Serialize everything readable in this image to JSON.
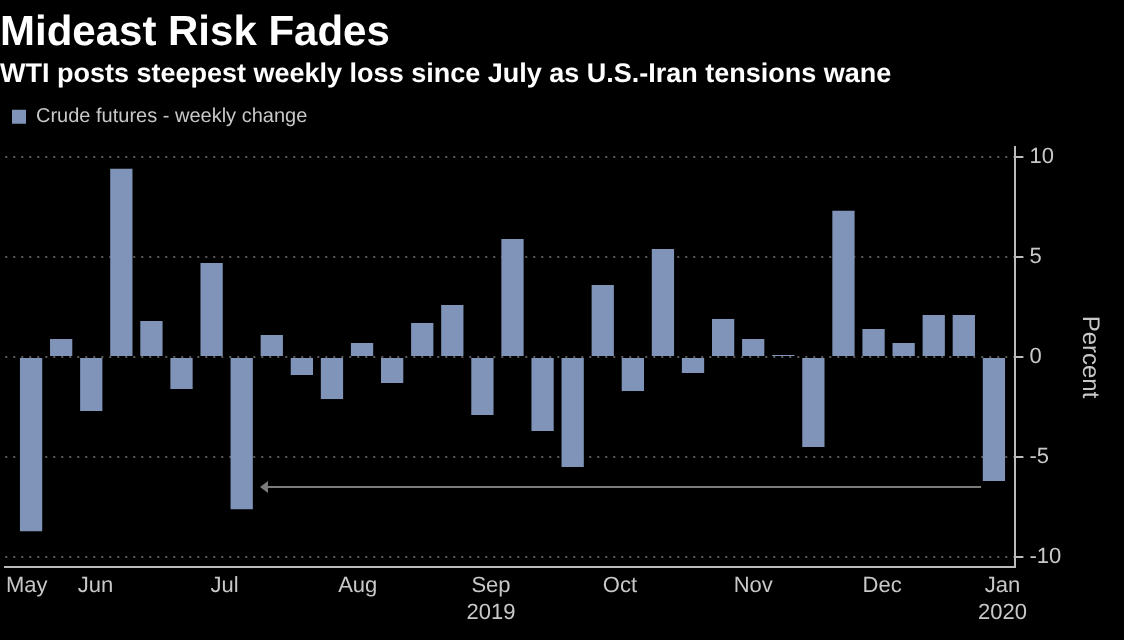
{
  "chart_data": {
    "type": "bar",
    "title": "Mideast Risk Fades",
    "subtitle": "WTI posts steepest weekly loss since July as U.S.-Iran tensions wane",
    "ylabel": "Percent",
    "x": [
      "2019-05-31",
      "2019-06-07",
      "2019-06-14",
      "2019-06-21",
      "2019-06-28",
      "2019-07-05",
      "2019-07-12",
      "2019-07-19",
      "2019-07-26",
      "2019-08-02",
      "2019-08-09",
      "2019-08-16",
      "2019-08-23",
      "2019-08-30",
      "2019-09-06",
      "2019-09-13",
      "2019-09-20",
      "2019-09-27",
      "2019-10-04",
      "2019-10-11",
      "2019-10-18",
      "2019-10-25",
      "2019-11-01",
      "2019-11-08",
      "2019-11-15",
      "2019-11-22",
      "2019-11-29",
      "2019-12-06",
      "2019-12-13",
      "2019-12-20",
      "2019-12-27",
      "2020-01-03",
      "2020-01-10"
    ],
    "series": [
      {
        "name": "Crude futures - weekly change",
        "color": "#7f94b8",
        "values": [
          -8.7,
          0.9,
          -2.7,
          9.4,
          1.8,
          -1.6,
          4.7,
          -7.6,
          1.1,
          -0.9,
          -2.1,
          0.7,
          -1.3,
          1.7,
          2.6,
          -2.9,
          5.9,
          -3.7,
          -5.5,
          3.6,
          -1.7,
          5.4,
          -0.8,
          1.9,
          0.9,
          0.1,
          -4.5,
          7.3,
          1.4,
          0.7,
          2.1,
          2.1,
          -6.2
        ]
      }
    ],
    "xlim": [
      "2019-05-25",
      "2020-01-15"
    ],
    "xticks": [
      {
        "value": "2019-05-30",
        "label": "May"
      },
      {
        "value": "2019-06-15",
        "label": "Jun"
      },
      {
        "value": "2019-07-15",
        "label": "Jul"
      },
      {
        "value": "2019-08-15",
        "label": "Aug"
      },
      {
        "value": "2019-09-15",
        "label": "Sep\n2019"
      },
      {
        "value": "2019-10-15",
        "label": "Oct"
      },
      {
        "value": "2019-11-15",
        "label": "Nov"
      },
      {
        "value": "2019-12-15",
        "label": "Dec"
      },
      {
        "value": "2020-01-12",
        "label": "Jan\n2020"
      }
    ],
    "ylim": [
      -10.5,
      10.5
    ],
    "yticks": [
      -10,
      -5,
      0,
      5,
      10
    ],
    "grid": "y",
    "legend": "top left"
  }
}
